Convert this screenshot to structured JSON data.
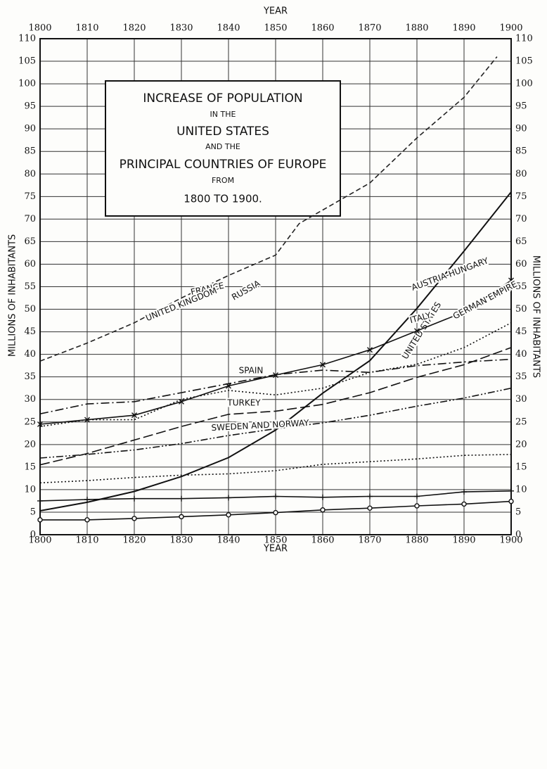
{
  "chart_data": {
    "type": "line",
    "title": [
      "INCREASE OF POPULATION",
      "IN THE",
      "UNITED STATES",
      "AND THE",
      "PRINCIPAL COUNTRIES OF EUROPE",
      "FROM",
      "1800 TO 1900."
    ],
    "xlabel": "YEAR",
    "ylabel": "MILLIONS OF INHABITANTS",
    "x": [
      1800,
      1810,
      1820,
      1830,
      1840,
      1850,
      1860,
      1870,
      1880,
      1890,
      1900
    ],
    "xlim": [
      1800,
      1900
    ],
    "xticks": [
      1800,
      1810,
      1820,
      1830,
      1840,
      1850,
      1860,
      1870,
      1880,
      1890,
      1900
    ],
    "ylim": [
      0,
      110
    ],
    "yticks": [
      0,
      5,
      10,
      15,
      20,
      25,
      30,
      35,
      40,
      45,
      50,
      55,
      60,
      65,
      70,
      75,
      80,
      85,
      90,
      95,
      100,
      105,
      110
    ],
    "grid": true,
    "series": [
      {
        "name": "RUSSIA",
        "color": "#222",
        "style": "dashed",
        "x": [
          1800,
          1810,
          1820,
          1830,
          1840,
          1850,
          1855,
          1860,
          1870,
          1880,
          1890,
          1897
        ],
        "values": [
          38.5,
          42.5,
          47,
          52.5,
          57.5,
          62,
          69,
          72,
          78,
          88,
          97,
          106
        ]
      },
      {
        "name": "UNITED STATES",
        "color": "#111",
        "style": "solid",
        "values": [
          5.3,
          7.2,
          9.6,
          12.9,
          17.1,
          23.2,
          31.4,
          38.6,
          50.2,
          62.9,
          76
        ]
      },
      {
        "name": "GERMAN EMPIRE",
        "color": "#111",
        "style": "solid",
        "marker": "x",
        "values": [
          24.5,
          25.5,
          26.5,
          29.5,
          33,
          35.4,
          37.7,
          41,
          45.2,
          49.4,
          56.4
        ]
      },
      {
        "name": "AUSTRIA-HUNGARY",
        "color": "#111",
        "style": "dotted",
        "values": [
          24,
          25.5,
          25.5,
          30,
          32,
          31,
          32.5,
          36,
          37.8,
          41.5,
          47
        ]
      },
      {
        "name": "FRANCE",
        "color": "#111",
        "style": "dashdot",
        "values": [
          26.8,
          29,
          29.5,
          31.5,
          33.5,
          35.5,
          36.5,
          36,
          37.5,
          38.3,
          38.9
        ]
      },
      {
        "name": "UNITED KINGDOM",
        "color": "#111",
        "style": "longdash",
        "values": [
          15.5,
          18,
          21,
          24,
          26.7,
          27.4,
          28.9,
          31.5,
          34.9,
          37.7,
          41.5
        ]
      },
      {
        "name": "ITALY",
        "color": "#111",
        "style": "dashdotdot",
        "values": [
          17,
          17.8,
          18.8,
          20.2,
          22,
          23.5,
          24.8,
          26.5,
          28.5,
          30.3,
          32.5
        ]
      },
      {
        "name": "SPAIN",
        "color": "#111",
        "style": "dotted",
        "values": [
          11.5,
          12,
          12.7,
          13.2,
          13.5,
          14.2,
          15.6,
          16.2,
          16.8,
          17.6,
          17.8
        ]
      },
      {
        "name": "TURKEY",
        "color": "#111",
        "style": "solid",
        "marker": "plus",
        "values": [
          7.5,
          7.8,
          8,
          8,
          8.2,
          8.5,
          8.3,
          8.5,
          8.5,
          9.5,
          9.7
        ]
      },
      {
        "name": "SWEDEN AND NORWAY",
        "color": "#111",
        "style": "solid",
        "marker": "circle",
        "values": [
          3.3,
          3.3,
          3.6,
          4,
          4.4,
          4.9,
          5.5,
          5.9,
          6.4,
          6.8,
          7.4
        ]
      }
    ]
  }
}
